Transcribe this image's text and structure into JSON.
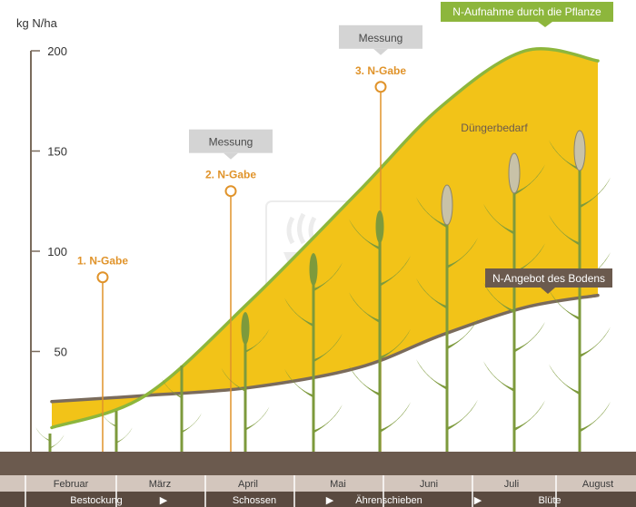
{
  "colors": {
    "uptake_area": "#f2c318",
    "uptake_line": "#8db63c",
    "soil_line": "#7a6b5c",
    "marker": "#e0932a",
    "soil": "#6b5a4e",
    "month_band": "#d3c6bd",
    "stage_band": "#5a4a40",
    "callout_grey": "#d4d4d4",
    "callout_dark": "#6b5a4e",
    "plant": "#7d9a3c"
  },
  "chart_data": {
    "type": "area",
    "ylabel": "kg N/ha",
    "yticks": [
      50,
      100,
      150,
      200
    ],
    "ylim": [
      0,
      200
    ],
    "x_categories": [
      "Februar",
      "März",
      "April",
      "Mai",
      "Juni",
      "Juli",
      "August"
    ],
    "stages": [
      "Bestockung",
      "Schossen",
      "Ährenschieben",
      "Blüte"
    ],
    "stage_arrow": "▶",
    "series": [
      {
        "name": "N-Aufnahme durch die Pflanze",
        "x": [
          "Februar",
          "März",
          "April",
          "Mai",
          "Juni",
          "Juli",
          "August"
        ],
        "values": [
          12,
          28,
          75,
          130,
          172,
          200,
          195
        ]
      },
      {
        "name": "N-Angebot des Bodens",
        "x": [
          "Februar",
          "März",
          "April",
          "Mai",
          "Juni",
          "Juli",
          "August"
        ],
        "values": [
          25,
          28,
          32,
          42,
          58,
          72,
          78
        ]
      }
    ],
    "area_label": "Düngerbedarf",
    "applications": [
      {
        "label": "1. N-Gabe",
        "month": "Februar",
        "value": 87,
        "callout": ""
      },
      {
        "label": "2. N-Gabe",
        "month": "April",
        "value": 130,
        "callout": "Messung"
      },
      {
        "label": "3. N-Gabe",
        "month": "Mai",
        "value": 182,
        "callout": "Messung"
      }
    ]
  }
}
